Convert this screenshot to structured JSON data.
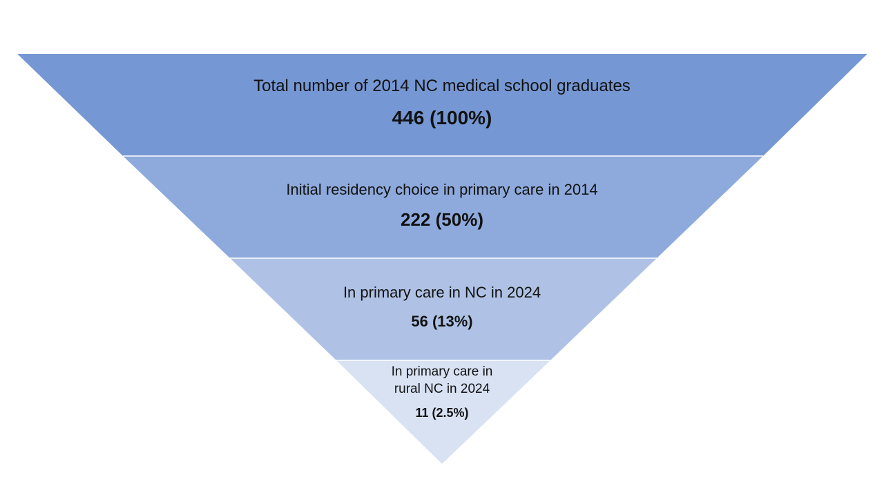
{
  "funnel": {
    "stages": [
      {
        "label": "Total number of 2014 NC medical school graduates",
        "value": "446 (100%)",
        "color": "#7597d3"
      },
      {
        "label": "Initial residency choice in primary care in 2014",
        "value": "222 (50%)",
        "color": "#8eaadc"
      },
      {
        "label": "In primary care in NC in 2024",
        "value": "56 (13%)",
        "color": "#afc2e5"
      },
      {
        "label": "In primary care in\nrural NC in 2024",
        "value": "11 (2.5%)",
        "color": "#d9e2f3"
      }
    ]
  }
}
